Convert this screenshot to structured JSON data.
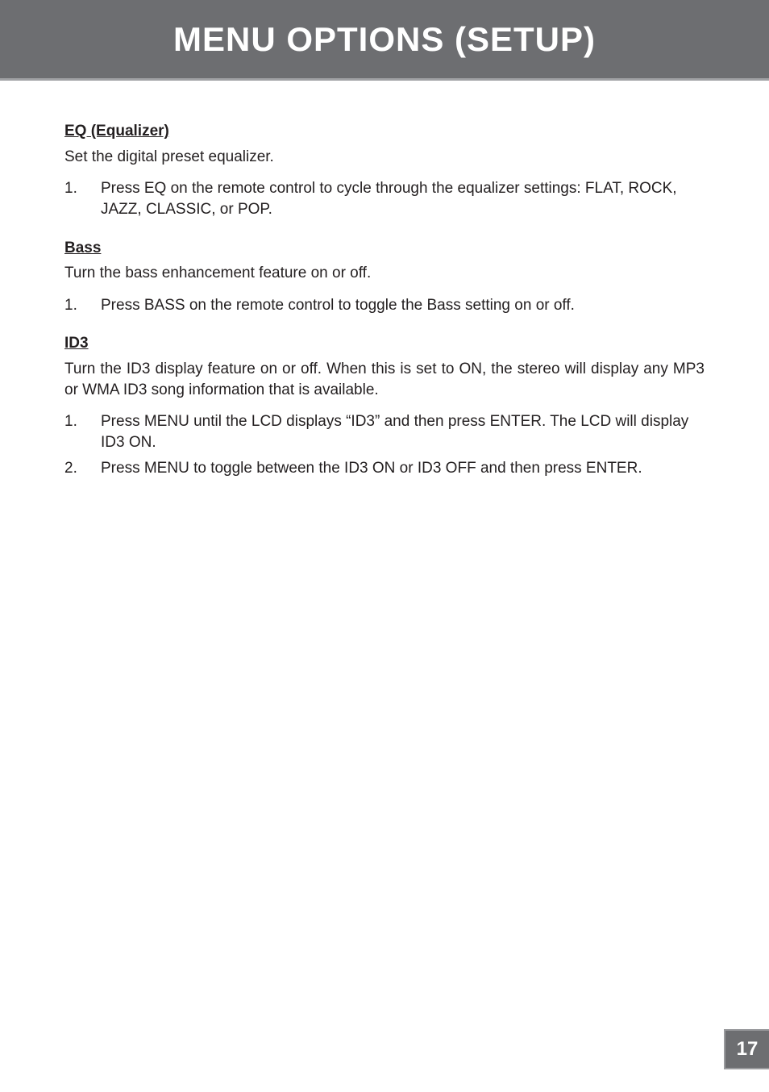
{
  "header": {
    "title": "MENU OPTIONS (SETUP)",
    "background_color": "#6d6e71",
    "text_color": "#ffffff",
    "border_color": "#a0a1a4",
    "title_fontsize": 42
  },
  "sections": [
    {
      "heading": "EQ (Equalizer)",
      "intro": "Set the digital preset equalizer.",
      "items": [
        {
          "number": "1.",
          "text": "Press EQ on the remote control to cycle through the equalizer settings: FLAT, ROCK, JAZZ, CLASSIC, or POP."
        }
      ]
    },
    {
      "heading": "Bass",
      "intro": "Turn the bass enhancement feature on or off.",
      "items": [
        {
          "number": "1.",
          "text": "Press BASS on the remote control to toggle the Bass setting on or off."
        }
      ]
    },
    {
      "heading": "ID3",
      "intro": "Turn the ID3 display feature on or off. When this is set to ON, the stereo will display any MP3 or WMA ID3 song information that is available.",
      "items": [
        {
          "number": "1.",
          "text": "Press MENU until the LCD displays “ID3” and then press ENTER. The LCD will display ID3 ON."
        },
        {
          "number": "2.",
          "text": "Press MENU to toggle between the ID3 ON or ID3 OFF and then press ENTER."
        }
      ]
    }
  ],
  "page_number": "17",
  "page_tab": {
    "background_color": "#6d6e71",
    "text_color": "#ffffff",
    "border_color": "#9a9b9e",
    "fontsize": 24
  },
  "body": {
    "text_color": "#231f20",
    "fontsize": 19,
    "background_color": "#ffffff"
  }
}
